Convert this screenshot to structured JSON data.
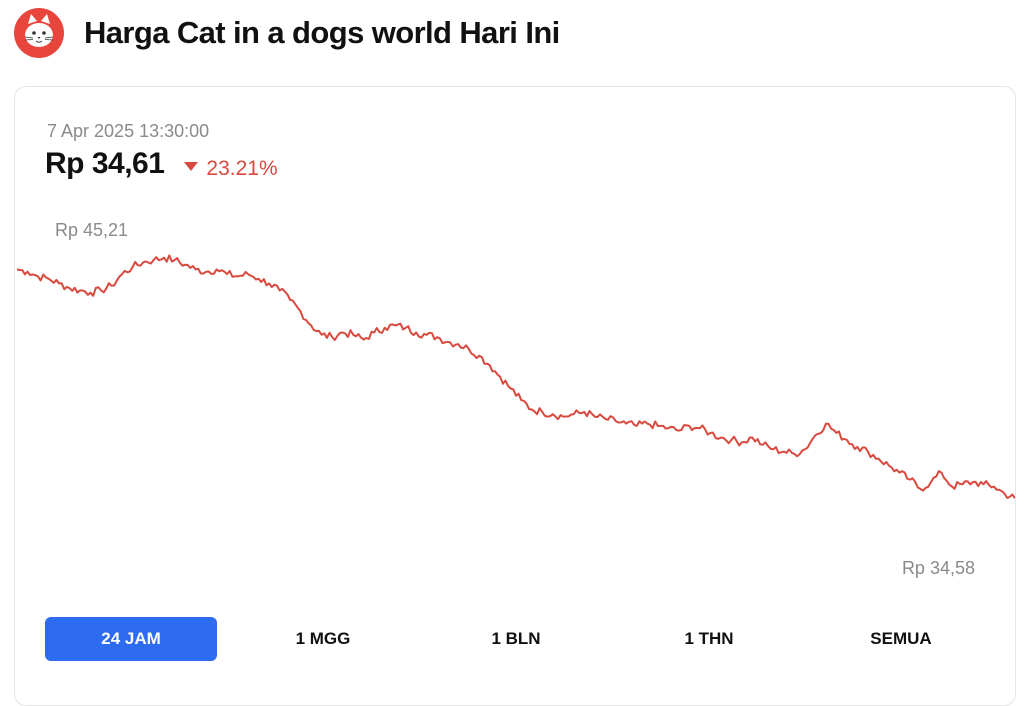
{
  "header": {
    "title": "Harga Cat in a dogs world Hari Ini",
    "logo_icon": "cat-face-icon",
    "logo_color": "#e8463c"
  },
  "price_panel": {
    "timestamp": "7 Apr 2025 13:30:00",
    "price": "Rp 34,61",
    "change": "23.21%",
    "change_direction": "down",
    "change_color": "#d84a3f"
  },
  "chart_data": {
    "type": "line",
    "line_color": "#d84a3f",
    "grid": false,
    "high_label": "Rp 45,21",
    "low_label": "Rp 34,58",
    "ylim": [
      34.0,
      46.5
    ],
    "values": [
      44.6,
      44.5,
      44.3,
      44.2,
      44.0,
      43.8,
      43.7,
      43.6,
      43.7,
      43.9,
      44.4,
      44.7,
      44.9,
      45.0,
      45.1,
      45.0,
      44.8,
      44.6,
      44.5,
      44.6,
      44.4,
      44.3,
      44.4,
      44.2,
      44.0,
      43.7,
      43.3,
      42.8,
      42.2,
      41.8,
      41.7,
      41.9,
      41.8,
      41.6,
      41.9,
      42.1,
      42.2,
      42.1,
      41.9,
      41.8,
      41.7,
      41.5,
      41.4,
      41.2,
      40.9,
      40.5,
      40.0,
      39.5,
      39.0,
      38.6,
      38.5,
      38.4,
      38.3,
      38.4,
      38.5,
      38.3,
      38.2,
      38.1,
      38.0,
      37.9,
      38.0,
      37.9,
      37.8,
      37.7,
      37.9,
      37.8,
      37.6,
      37.4,
      37.3,
      37.2,
      37.4,
      37.1,
      36.9,
      36.8,
      36.7,
      36.9,
      37.5,
      38.0,
      37.6,
      37.3,
      37.0,
      36.8,
      36.5,
      36.2,
      35.9,
      35.6,
      35.2,
      35.5,
      35.9,
      35.3,
      35.4,
      35.5,
      35.4,
      35.3,
      35.0,
      34.8
    ]
  },
  "range_selector": {
    "options": [
      "24 JAM",
      "1 MGG",
      "1 BLN",
      "1 THN",
      "SEMUA"
    ],
    "active_index": 0,
    "active_color": "#2d6bf0"
  }
}
